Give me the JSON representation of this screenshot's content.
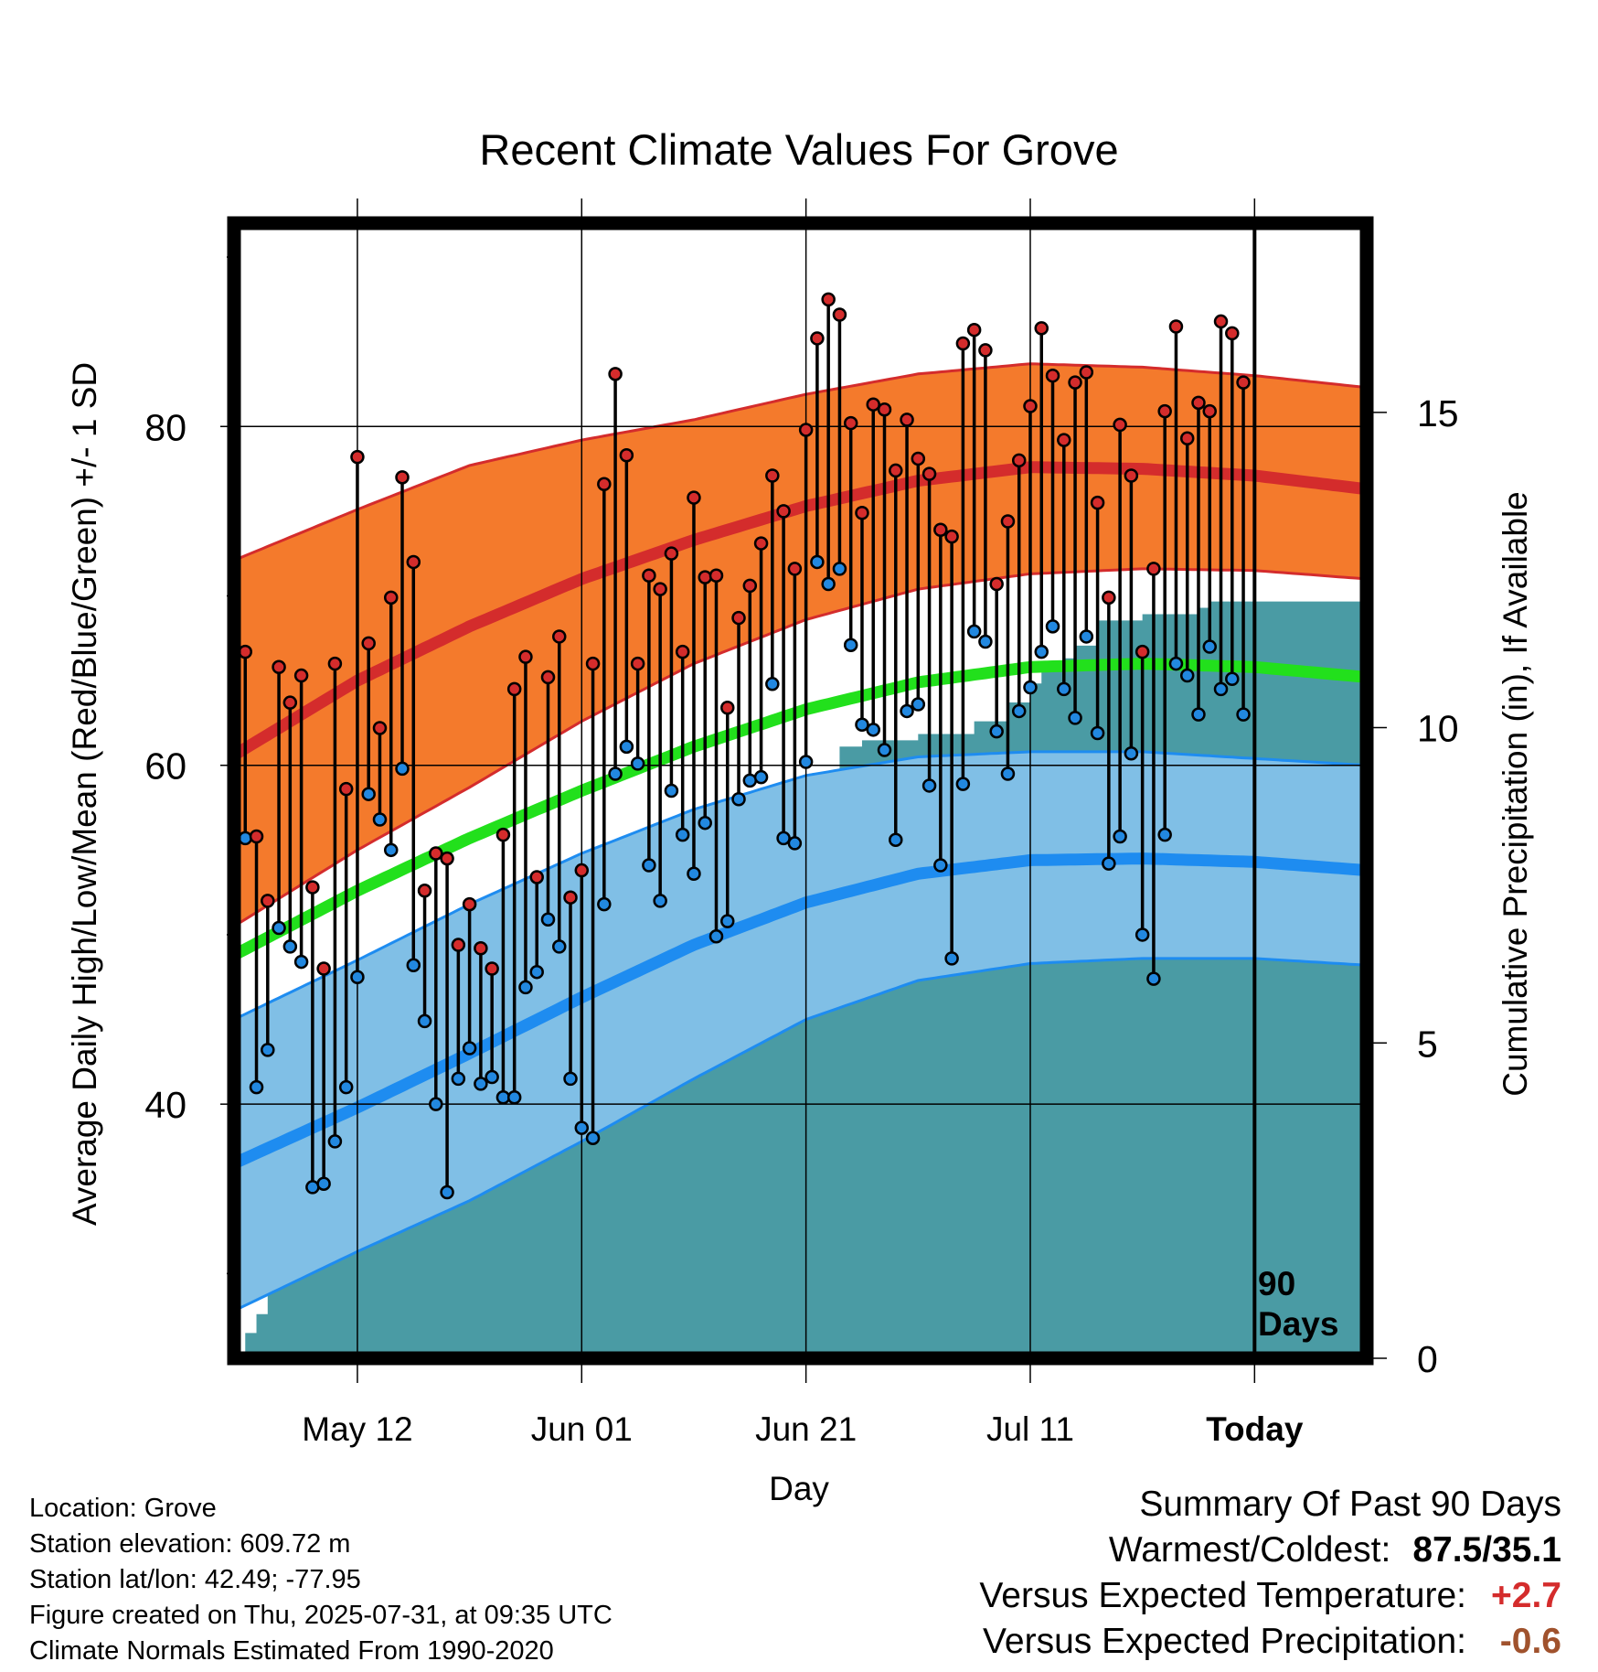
{
  "chart_data": {
    "type": "line",
    "title": "Recent Climate Values For Grove",
    "xlabel": "Day",
    "ylabel": "Average Daily High/Low/Mean (Red/Blue/Green) +/- 1 SD",
    "y2label": "Cumulative Precipitation (in), If Available",
    "xticks": [
      {
        "day": 10,
        "label": "May 12"
      },
      {
        "day": 30,
        "label": "Jun 01"
      },
      {
        "day": 50,
        "label": "Jun 21"
      },
      {
        "day": 70,
        "label": "Jul 11"
      },
      {
        "day": 90,
        "label": "Today"
      }
    ],
    "xlim": [
      -1,
      100
    ],
    "ylim": [
      25,
      92
    ],
    "yticks": [
      40,
      60,
      80
    ],
    "y2lim": [
      0,
      18
    ],
    "y2ticks": [
      0,
      5,
      10,
      15
    ],
    "today_marker": {
      "day": 90,
      "label_line1": "90",
      "label_line2": "Days"
    },
    "colors": {
      "high_band": "#f47a2c",
      "high_band_edge": "#d42c2c",
      "high_normal": "#d42c2c",
      "mean_normal": "#22e01c",
      "low_band": "#80bfe6",
      "low_band_edge": "#1e8cf0",
      "low_normal": "#1e8cf0",
      "precip": "#4a9ba4",
      "high_dot": "#d42c2c",
      "low_dot": "#2288e0"
    },
    "days": [
      0,
      1,
      2,
      3,
      4,
      5,
      6,
      7,
      8,
      9,
      10,
      11,
      12,
      13,
      14,
      15,
      16,
      17,
      18,
      19,
      20,
      21,
      22,
      23,
      24,
      25,
      26,
      27,
      28,
      29,
      30,
      31,
      32,
      33,
      34,
      35,
      36,
      37,
      38,
      39,
      40,
      41,
      42,
      43,
      44,
      45,
      46,
      47,
      48,
      49,
      50,
      51,
      52,
      53,
      54,
      55,
      56,
      57,
      58,
      59,
      60,
      61,
      62,
      63,
      64,
      65,
      66,
      67,
      68,
      69,
      70,
      71,
      72,
      73,
      74,
      75,
      76,
      77,
      78,
      79,
      80,
      81,
      82,
      83,
      84,
      85,
      86,
      87,
      88,
      89
    ],
    "daily_high": [
      66.7,
      55.8,
      52.0,
      65.8,
      63.7,
      65.3,
      52.8,
      48.0,
      66.0,
      58.6,
      78.2,
      67.2,
      62.2,
      69.9,
      77.0,
      72.0,
      52.6,
      54.8,
      54.5,
      49.4,
      51.8,
      49.2,
      48.0,
      55.9,
      64.5,
      66.4,
      53.4,
      65.2,
      67.6,
      52.2,
      53.8,
      66.0,
      76.6,
      83.1,
      78.3,
      66.0,
      71.2,
      70.4,
      72.5,
      66.7,
      75.8,
      71.1,
      71.2,
      63.4,
      68.7,
      70.6,
      73.1,
      77.1,
      75.0,
      71.6,
      79.8,
      85.2,
      87.5,
      86.6,
      80.2,
      74.9,
      81.3,
      81.0,
      77.4,
      80.4,
      78.1,
      77.2,
      73.9,
      73.5,
      84.9,
      85.7,
      84.5,
      70.7,
      74.4,
      78.0,
      81.2,
      85.8,
      83.0,
      79.2,
      82.6,
      83.2,
      75.5,
      69.9,
      80.1,
      77.1,
      66.7,
      71.6,
      80.9,
      85.9,
      79.3,
      81.4,
      80.9,
      86.2,
      85.5,
      82.6
    ],
    "daily_low": [
      55.7,
      41.0,
      43.2,
      50.4,
      49.3,
      48.4,
      35.1,
      35.3,
      37.8,
      41.0,
      47.5,
      58.3,
      56.8,
      55.0,
      59.8,
      48.2,
      44.9,
      40.0,
      34.8,
      41.5,
      43.3,
      41.2,
      41.6,
      40.4,
      40.4,
      46.9,
      47.8,
      50.9,
      49.3,
      41.5,
      38.6,
      38.0,
      51.8,
      59.5,
      61.1,
      60.1,
      54.1,
      52.0,
      58.5,
      55.9,
      53.6,
      56.6,
      49.9,
      50.8,
      58.0,
      59.1,
      59.3,
      64.8,
      55.7,
      55.4,
      60.2,
      72.0,
      70.7,
      71.6,
      67.1,
      62.4,
      62.1,
      60.9,
      55.6,
      63.2,
      63.6,
      58.8,
      54.1,
      48.6,
      58.9,
      67.9,
      67.3,
      62.0,
      59.5,
      63.2,
      64.6,
      66.7,
      68.2,
      64.5,
      62.8,
      67.6,
      61.9,
      54.2,
      55.8,
      60.7,
      50.0,
      47.4,
      55.9,
      66.0,
      65.3,
      63.0,
      67.0,
      64.5,
      65.1,
      63.0
    ],
    "normal_high": [
      {
        "day": -1,
        "value": 60.6
      },
      {
        "day": 10,
        "value": 65.0
      },
      {
        "day": 20,
        "value": 68.2
      },
      {
        "day": 30,
        "value": 71.0
      },
      {
        "day": 40,
        "value": 73.3
      },
      {
        "day": 50,
        "value": 75.3
      },
      {
        "day": 60,
        "value": 76.8
      },
      {
        "day": 70,
        "value": 77.6
      },
      {
        "day": 80,
        "value": 77.5
      },
      {
        "day": 90,
        "value": 77.1
      },
      {
        "day": 100,
        "value": 76.3
      }
    ],
    "normal_high_sd_upper": [
      {
        "day": -1,
        "value": 72.1
      },
      {
        "day": 10,
        "value": 75.1
      },
      {
        "day": 20,
        "value": 77.7
      },
      {
        "day": 30,
        "value": 79.2
      },
      {
        "day": 40,
        "value": 80.4
      },
      {
        "day": 50,
        "value": 81.9
      },
      {
        "day": 60,
        "value": 83.1
      },
      {
        "day": 70,
        "value": 83.7
      },
      {
        "day": 80,
        "value": 83.5
      },
      {
        "day": 90,
        "value": 83.0
      },
      {
        "day": 100,
        "value": 82.3
      }
    ],
    "normal_high_sd_lower": [
      {
        "day": -1,
        "value": 50.5
      },
      {
        "day": 10,
        "value": 55.0
      },
      {
        "day": 20,
        "value": 58.7
      },
      {
        "day": 30,
        "value": 62.6
      },
      {
        "day": 40,
        "value": 66.0
      },
      {
        "day": 50,
        "value": 68.6
      },
      {
        "day": 60,
        "value": 70.4
      },
      {
        "day": 70,
        "value": 71.3
      },
      {
        "day": 80,
        "value": 71.6
      },
      {
        "day": 90,
        "value": 71.5
      },
      {
        "day": 100,
        "value": 71.0
      }
    ],
    "normal_mean": [
      {
        "day": -1,
        "value": 48.8
      },
      {
        "day": 10,
        "value": 52.6
      },
      {
        "day": 20,
        "value": 55.7
      },
      {
        "day": 30,
        "value": 58.5
      },
      {
        "day": 40,
        "value": 61.1
      },
      {
        "day": 50,
        "value": 63.3
      },
      {
        "day": 60,
        "value": 64.9
      },
      {
        "day": 70,
        "value": 65.8
      },
      {
        "day": 80,
        "value": 66.0
      },
      {
        "day": 90,
        "value": 65.8
      },
      {
        "day": 100,
        "value": 65.2
      }
    ],
    "normal_low": [
      {
        "day": -1,
        "value": 36.5
      },
      {
        "day": 10,
        "value": 39.8
      },
      {
        "day": 20,
        "value": 43.0
      },
      {
        "day": 30,
        "value": 46.3
      },
      {
        "day": 40,
        "value": 49.4
      },
      {
        "day": 50,
        "value": 51.9
      },
      {
        "day": 60,
        "value": 53.6
      },
      {
        "day": 70,
        "value": 54.4
      },
      {
        "day": 80,
        "value": 54.5
      },
      {
        "day": 90,
        "value": 54.3
      },
      {
        "day": 100,
        "value": 53.8
      }
    ],
    "normal_low_sd_upper": [
      {
        "day": -1,
        "value": 45.0
      },
      {
        "day": 10,
        "value": 48.5
      },
      {
        "day": 20,
        "value": 51.8
      },
      {
        "day": 30,
        "value": 54.8
      },
      {
        "day": 40,
        "value": 57.4
      },
      {
        "day": 50,
        "value": 59.4
      },
      {
        "day": 60,
        "value": 60.5
      },
      {
        "day": 70,
        "value": 60.8
      },
      {
        "day": 80,
        "value": 60.8
      },
      {
        "day": 90,
        "value": 60.4
      },
      {
        "day": 100,
        "value": 60.0
      }
    ],
    "normal_low_sd_lower": [
      {
        "day": -1,
        "value": 27.8
      },
      {
        "day": 10,
        "value": 31.3
      },
      {
        "day": 20,
        "value": 34.3
      },
      {
        "day": 30,
        "value": 37.8
      },
      {
        "day": 40,
        "value": 41.5
      },
      {
        "day": 50,
        "value": 45.0
      },
      {
        "day": 60,
        "value": 47.3
      },
      {
        "day": 70,
        "value": 48.3
      },
      {
        "day": 80,
        "value": 48.6
      },
      {
        "day": 90,
        "value": 48.6
      },
      {
        "day": 100,
        "value": 48.2
      }
    ],
    "cumulative_precip_steps": [
      {
        "day": -1,
        "value": 0.0
      },
      {
        "day": 0,
        "value": 0.4
      },
      {
        "day": 1,
        "value": 0.7
      },
      {
        "day": 2,
        "value": 2.6
      },
      {
        "day": 3,
        "value": 3.3
      },
      {
        "day": 12,
        "value": 3.4
      },
      {
        "day": 13,
        "value": 3.6
      },
      {
        "day": 14,
        "value": 3.8
      },
      {
        "day": 19,
        "value": 4.5
      },
      {
        "day": 21,
        "value": 5.0
      },
      {
        "day": 24,
        "value": 5.5
      },
      {
        "day": 25,
        "value": 5.9
      },
      {
        "day": 26,
        "value": 6.0
      },
      {
        "day": 32,
        "value": 6.2
      },
      {
        "day": 34,
        "value": 6.7
      },
      {
        "day": 36,
        "value": 7.0
      },
      {
        "day": 37,
        "value": 7.6
      },
      {
        "day": 38,
        "value": 8.0
      },
      {
        "day": 46,
        "value": 8.8
      },
      {
        "day": 47,
        "value": 9.1
      },
      {
        "day": 50,
        "value": 9.1
      },
      {
        "day": 53,
        "value": 9.7
      },
      {
        "day": 55,
        "value": 9.8
      },
      {
        "day": 60,
        "value": 9.9
      },
      {
        "day": 65,
        "value": 10.1
      },
      {
        "day": 68,
        "value": 10.4
      },
      {
        "day": 70,
        "value": 10.7
      },
      {
        "day": 71,
        "value": 10.9
      },
      {
        "day": 73,
        "value": 11.1
      },
      {
        "day": 74,
        "value": 11.3
      },
      {
        "day": 76,
        "value": 11.7
      },
      {
        "day": 80,
        "value": 11.8
      },
      {
        "day": 85,
        "value": 11.9
      },
      {
        "day": 86,
        "value": 12.0
      },
      {
        "day": 100,
        "value": 12.0
      }
    ]
  },
  "info": {
    "location": "Location: Grove",
    "elevation": "Station elevation: 609.72 m",
    "latlon": "Station lat/lon: 42.49; -77.95",
    "created": "Figure created on Thu, 2025-07-31, at 09:35 UTC",
    "normals": "Climate Normals Estimated From 1990-2020"
  },
  "summary": {
    "title": "Summary Of Past 90 Days",
    "warm_cold_label": "Warmest/Coldest:",
    "warm_cold_value": "87.5/35.1",
    "temp_label": "Versus Expected Temperature:",
    "temp_value": "+2.7",
    "temp_color": "#d42c2c",
    "precip_label": "Versus Expected Precipitation:",
    "precip_value": "-0.6",
    "precip_color": "#a0522d"
  }
}
